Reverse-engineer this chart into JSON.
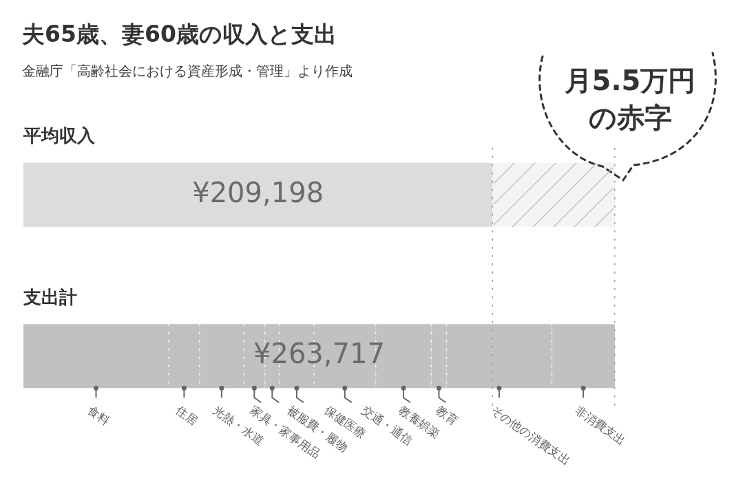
{
  "chart_data": {
    "type": "bar",
    "orientation": "horizontal",
    "stacked": true,
    "title": "夫65歳、妻60歳の収入と支出",
    "subtitle": "金融庁「高齢社会における資産形成・管理」より作成",
    "categories": [
      "平均収入",
      "支出計"
    ],
    "series": [
      {
        "color": "#dcdcdd",
        "values": [
          209198,
          null
        ],
        "value_labels": [
          "¥209,198",
          null
        ]
      },
      {
        "color": "#f4f4f4",
        "values": [
          54519,
          null
        ]
      },
      {
        "name": "食料",
        "color": "#c0c1c3",
        "values": [
          null,
          64780
        ]
      },
      {
        "name": "住居",
        "color": "#c0c1c3",
        "values": [
          null,
          13770
        ]
      },
      {
        "name": "光熱・水道",
        "color": "#c0c1c3",
        "values": [
          null,
          19700
        ]
      },
      {
        "name": "家具・家事用品",
        "color": "#c0c1c3",
        "values": [
          null,
          9450
        ]
      },
      {
        "name": "被服費・履物",
        "color": "#c0c1c3",
        "values": [
          null,
          6480
        ]
      },
      {
        "name": "保健医療",
        "color": "#c0c1c3",
        "values": [
          null,
          15390
        ]
      },
      {
        "name": "交通・通信",
        "color": "#c0c1c3",
        "values": [
          null,
          27530
        ]
      },
      {
        "name": "教養娯楽",
        "color": "#c0c1c3",
        "values": [
          null,
          24830
        ]
      },
      {
        "name": "教育",
        "color": "#c0c1c3",
        "values": [
          null,
          6750
        ]
      },
      {
        "name": "その他の消費支出",
        "color": "#c0c1c3",
        "values": [
          null,
          46970
        ]
      },
      {
        "name": "非消費支出",
        "color": "#c0c1c3",
        "values": [
          null,
          28067
        ]
      }
    ],
    "totals": [
      null,
      "¥263,717"
    ],
    "annotations": [
      "月5.5万円の赤字"
    ],
    "ref_lines": [
      {
        "axis": "x",
        "value": 209198,
        "color": "#9a9a9a",
        "line_style": "dotted"
      },
      {
        "axis": "x",
        "value": 263717,
        "color": "#9a9a9a",
        "line_style": "dotted"
      }
    ],
    "legend": false
  }
}
